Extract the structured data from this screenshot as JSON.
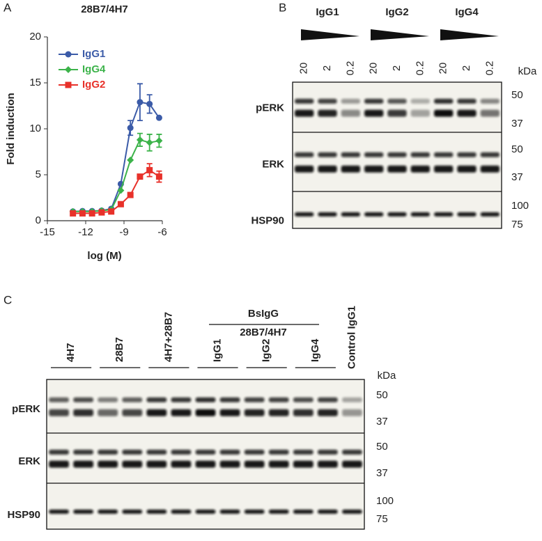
{
  "chart_data": {
    "type": "line",
    "title": "28B7/4H7",
    "x": [
      -13,
      -12.25,
      -11.5,
      -10.75,
      -10,
      -9.25,
      -8.5,
      -7.75,
      -7,
      -6.25
    ],
    "series": [
      {
        "name": "IgG1",
        "color": "#3b5ba8",
        "marker": "circle",
        "values": [
          1.0,
          1.05,
          1.05,
          1.1,
          1.3,
          4.0,
          10.1,
          12.9,
          12.7,
          11.2
        ],
        "errors": [
          null,
          null,
          null,
          null,
          null,
          null,
          0.8,
          2.0,
          1.0,
          null
        ]
      },
      {
        "name": "IgG4",
        "color": "#3cb34a",
        "marker": "diamond",
        "values": [
          1.0,
          1.0,
          1.0,
          1.1,
          1.2,
          3.3,
          6.6,
          8.8,
          8.5,
          8.7
        ],
        "errors": [
          null,
          null,
          null,
          null,
          null,
          null,
          null,
          0.7,
          0.9,
          0.7
        ]
      },
      {
        "name": "IgG2",
        "color": "#e8312a",
        "marker": "square",
        "values": [
          0.8,
          0.8,
          0.8,
          0.9,
          1.0,
          1.8,
          2.8,
          4.8,
          5.5,
          4.8
        ],
        "errors": [
          null,
          null,
          null,
          null,
          null,
          null,
          null,
          null,
          0.7,
          0.6
        ]
      }
    ],
    "xlabel": "log (M)",
    "ylabel": "Fold induction",
    "xlim": [
      -15,
      -6
    ],
    "xticks": [
      -15,
      -12,
      -9,
      -6
    ],
    "ylim": [
      0,
      20
    ],
    "yticks": [
      0,
      5,
      10,
      15,
      20
    ],
    "legend": "upper left"
  },
  "panel_labels": [
    "A",
    "B",
    "C"
  ],
  "blot_b": {
    "groups": [
      "IgG1",
      "IgG2",
      "IgG4"
    ],
    "lanes": [
      "20",
      "2",
      "0.2",
      "20",
      "2",
      "0.2",
      "20",
      "2",
      "0.2"
    ],
    "unit": "kDa",
    "rows": [
      {
        "label": "pERK",
        "markers": [
          "50",
          "37"
        ]
      },
      {
        "label": "ERK",
        "markers": [
          "50",
          "37"
        ]
      },
      {
        "label": "HSP90",
        "markers": [
          "100",
          "75"
        ]
      }
    ]
  },
  "blot_c": {
    "groups": [
      "4H7",
      "28B7",
      "4H7+28B7",
      "IgG1",
      "IgG2",
      "IgG4",
      "Control IgG1"
    ],
    "bracket": [
      "BsIgG",
      "28B7/4H7"
    ],
    "unit": "kDa",
    "rows": [
      {
        "label": "pERK",
        "markers": [
          "50",
          "37"
        ]
      },
      {
        "label": "ERK",
        "markers": [
          "50",
          "37"
        ]
      },
      {
        "label": "HSP90",
        "markers": [
          "100",
          "75"
        ]
      }
    ]
  }
}
